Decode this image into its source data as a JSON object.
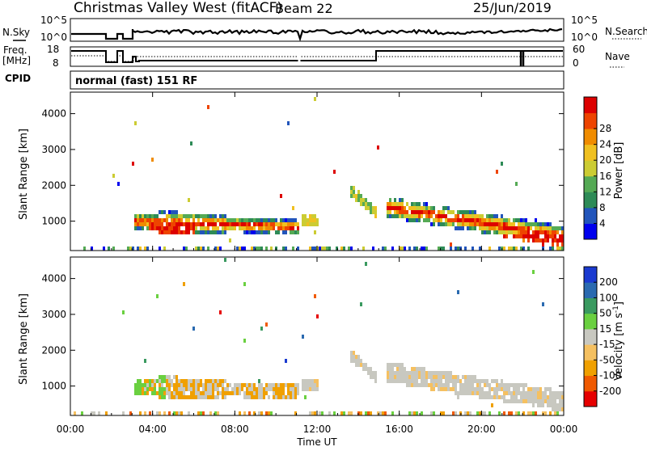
{
  "header": {
    "station": "Christmas Valley West (fitACF)",
    "beam": "Beam 22",
    "date": "25/Jun/2019"
  },
  "summary_panels": {
    "nsky_label": "N.Sky",
    "nsearch_label": "N.Search",
    "noise_ticks": [
      "10^5",
      "10^0"
    ],
    "freq_label_line1": "Freq.",
    "freq_label_line2": "[MHz]",
    "freq_ticks": [
      "18",
      "8"
    ],
    "nave_label": "Nave",
    "nave_ticks": [
      "60",
      "0"
    ],
    "cpid_label": "CPID",
    "cpid_text": "normal (fast) 151 RF"
  },
  "colors": {
    "power_scale": [
      "#0000ee",
      "#2255bb",
      "#2e8b57",
      "#55aa55",
      "#cccc33",
      "#f0c020",
      "#f08c00",
      "#ee4400",
      "#dd0000"
    ],
    "velocity_scale": [
      "#e60000",
      "#f05a00",
      "#f0a000",
      "#f5c060",
      "#c8c8c0",
      "#6ad040",
      "#3a9a60",
      "#2a6ab0",
      "#1a3ad0"
    ]
  },
  "chart_data": [
    {
      "type": "heatmap",
      "panel": "power",
      "ylabel": "Slant Range [km]",
      "yticks": [
        1000,
        2000,
        3000,
        4000
      ],
      "ylim": [
        180,
        4600
      ],
      "xlabel": "Time UT",
      "xticks": [
        "00:00",
        "04:00",
        "08:00",
        "12:00",
        "16:00",
        "20:00",
        "00:00"
      ],
      "xlim_hours": [
        0,
        24
      ],
      "colorbar": {
        "label": "Power [dB]",
        "tick_labels": [
          "4",
          "8",
          "12",
          "16",
          "20",
          "24",
          "28"
        ],
        "range": [
          0,
          30
        ]
      }
    },
    {
      "type": "heatmap",
      "panel": "velocity",
      "ylabel": "Slant Range [km]",
      "yticks": [
        1000,
        2000,
        3000,
        4000
      ],
      "ylim": [
        180,
        4600
      ],
      "xlabel": "Time UT",
      "xticks": [
        "00:00",
        "04:00",
        "08:00",
        "12:00",
        "16:00",
        "20:00",
        "00:00"
      ],
      "xlim_hours": [
        0,
        24
      ],
      "colorbar": {
        "label": "Velocity [m s",
        "label_sup": "-1",
        "label_end": "]",
        "tick_labels": [
          "-200",
          "-100",
          "-50",
          "-15",
          "15",
          "50",
          "100",
          "200"
        ],
        "range": [
          -250,
          250
        ]
      }
    }
  ],
  "time_axis": {
    "label": "Time UT",
    "ticks": [
      "00:00",
      "04:00",
      "08:00",
      "12:00",
      "16:00",
      "20:00",
      "00:00"
    ]
  }
}
